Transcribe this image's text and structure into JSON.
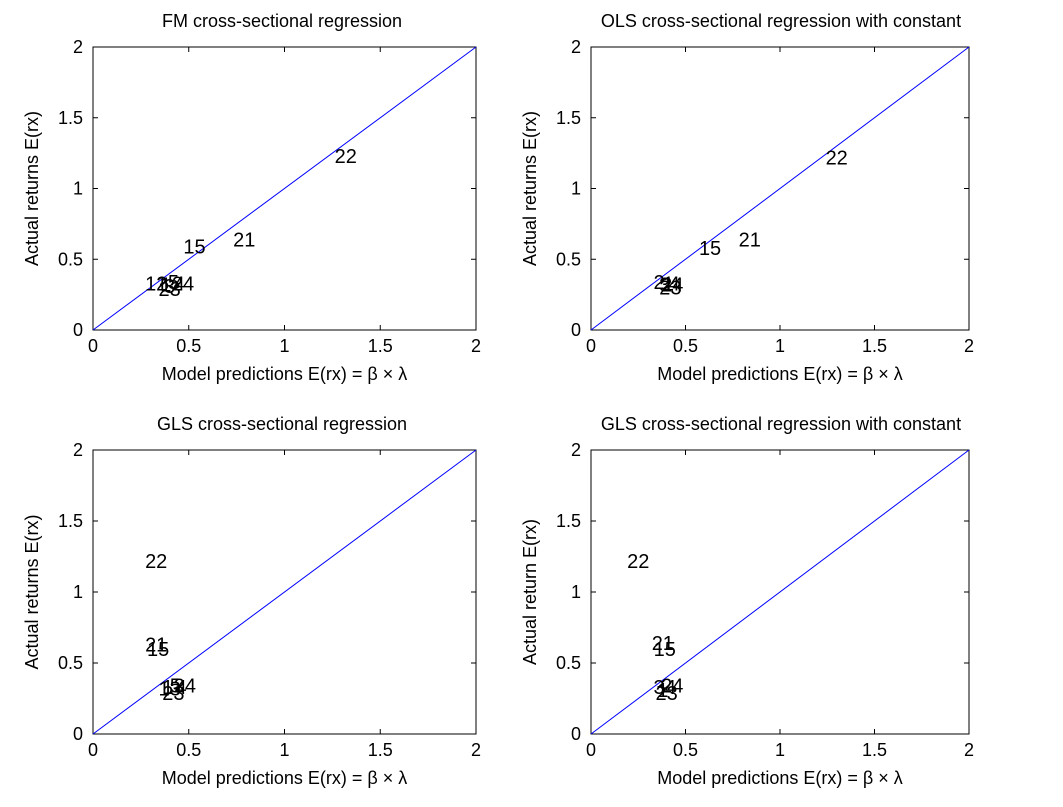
{
  "chart_data": [
    {
      "type": "scatter",
      "title": "FM cross-sectional regression",
      "xlabel": "Model predictions E(rx) =  β × λ",
      "ylabel": "Actual returns E(rx)",
      "xlim": [
        0,
        2
      ],
      "ylim": [
        0,
        2
      ],
      "xticks": [
        "0",
        "0.5",
        "1",
        "1.5",
        "2"
      ],
      "yticks": [
        "0",
        "0.5",
        "1",
        "1.5",
        "2"
      ],
      "reference_line": {
        "from": [
          0,
          0
        ],
        "to": [
          2,
          2
        ],
        "color": "#0000ff"
      },
      "points": [
        {
          "label": "1",
          "x": 0.36,
          "y": 0.33
        },
        {
          "label": "1",
          "x": 0.38,
          "y": 0.32
        },
        {
          "label": "12",
          "x": 0.33,
          "y": 0.33
        },
        {
          "label": "3",
          "x": 0.4,
          "y": 0.31
        },
        {
          "label": "23",
          "x": 0.4,
          "y": 0.29
        },
        {
          "label": "4",
          "x": 0.45,
          "y": 0.33
        },
        {
          "label": "24",
          "x": 0.47,
          "y": 0.33
        },
        {
          "label": "5",
          "x": 0.42,
          "y": 0.34
        },
        {
          "label": "15",
          "x": 0.53,
          "y": 0.59
        },
        {
          "label": "21",
          "x": 0.79,
          "y": 0.64
        },
        {
          "label": "22",
          "x": 1.32,
          "y": 1.23
        }
      ]
    },
    {
      "type": "scatter",
      "title": "OLS cross-sectional regression with constant",
      "xlabel": "Model predictions E(rx) =  β × λ",
      "ylabel": "Actual returns E(rx)",
      "xlim": [
        0,
        2
      ],
      "ylim": [
        0,
        2
      ],
      "xticks": [
        "0",
        "0.5",
        "1",
        "1.5",
        "2"
      ],
      "yticks": [
        "0",
        "0.5",
        "1",
        "1.5",
        "2"
      ],
      "reference_line": {
        "from": [
          0,
          0
        ],
        "to": [
          2,
          2
        ],
        "color": "#0000ff"
      },
      "points": [
        {
          "label": "2",
          "x": 0.36,
          "y": 0.34
        },
        {
          "label": "3",
          "x": 0.39,
          "y": 0.32
        },
        {
          "label": "1",
          "x": 0.41,
          "y": 0.33
        },
        {
          "label": "23",
          "x": 0.42,
          "y": 0.3
        },
        {
          "label": "4",
          "x": 0.44,
          "y": 0.33
        },
        {
          "label": "24",
          "x": 0.43,
          "y": 0.32
        },
        {
          "label": "15",
          "x": 0.63,
          "y": 0.58
        },
        {
          "label": "21",
          "x": 0.84,
          "y": 0.64
        },
        {
          "label": "22",
          "x": 1.3,
          "y": 1.22
        }
      ]
    },
    {
      "type": "scatter",
      "title": "GLS cross-sectional regression",
      "xlabel": "Model predictions E(rx) =  β × λ",
      "ylabel": "Actual returns E(rx)",
      "xlim": [
        0,
        2
      ],
      "ylim": [
        0,
        2
      ],
      "xticks": [
        "0",
        "0.5",
        "1",
        "1.5",
        "2"
      ],
      "yticks": [
        "0",
        "0.5",
        "1",
        "1.5",
        "2"
      ],
      "reference_line": {
        "from": [
          0,
          0
        ],
        "to": [
          2,
          2
        ],
        "color": "#0000ff"
      },
      "points": [
        {
          "label": "1",
          "x": 0.39,
          "y": 0.33
        },
        {
          "label": "13",
          "x": 0.4,
          "y": 0.32
        },
        {
          "label": "23",
          "x": 0.42,
          "y": 0.29
        },
        {
          "label": "4",
          "x": 0.46,
          "y": 0.33
        },
        {
          "label": "5",
          "x": 0.43,
          "y": 0.34
        },
        {
          "label": "24",
          "x": 0.48,
          "y": 0.34
        },
        {
          "label": "15",
          "x": 0.34,
          "y": 0.6
        },
        {
          "label": "21",
          "x": 0.33,
          "y": 0.63
        },
        {
          "label": "22",
          "x": 0.33,
          "y": 1.22
        }
      ]
    },
    {
      "type": "scatter",
      "title": "GLS cross-sectional regression with constant",
      "xlabel": "Model predictions E(rx) =  β × λ",
      "ylabel": "Actual return E(rx)",
      "xlim": [
        0,
        2
      ],
      "ylim": [
        0,
        2
      ],
      "xticks": [
        "0",
        "0.5",
        "1",
        "1.5",
        "2"
      ],
      "yticks": [
        "0",
        "0.5",
        "1",
        "1.5",
        "2"
      ],
      "reference_line": {
        "from": [
          0,
          0
        ],
        "to": [
          2,
          2
        ],
        "color": "#0000ff"
      },
      "points": [
        {
          "label": "3",
          "x": 0.36,
          "y": 0.33
        },
        {
          "label": "1",
          "x": 0.38,
          "y": 0.31
        },
        {
          "label": "23",
          "x": 0.4,
          "y": 0.29
        },
        {
          "label": "4",
          "x": 0.42,
          "y": 0.33
        },
        {
          "label": "24",
          "x": 0.43,
          "y": 0.34
        },
        {
          "label": "15",
          "x": 0.39,
          "y": 0.6
        },
        {
          "label": "21",
          "x": 0.38,
          "y": 0.64
        },
        {
          "label": "22",
          "x": 0.25,
          "y": 1.22
        }
      ]
    }
  ]
}
